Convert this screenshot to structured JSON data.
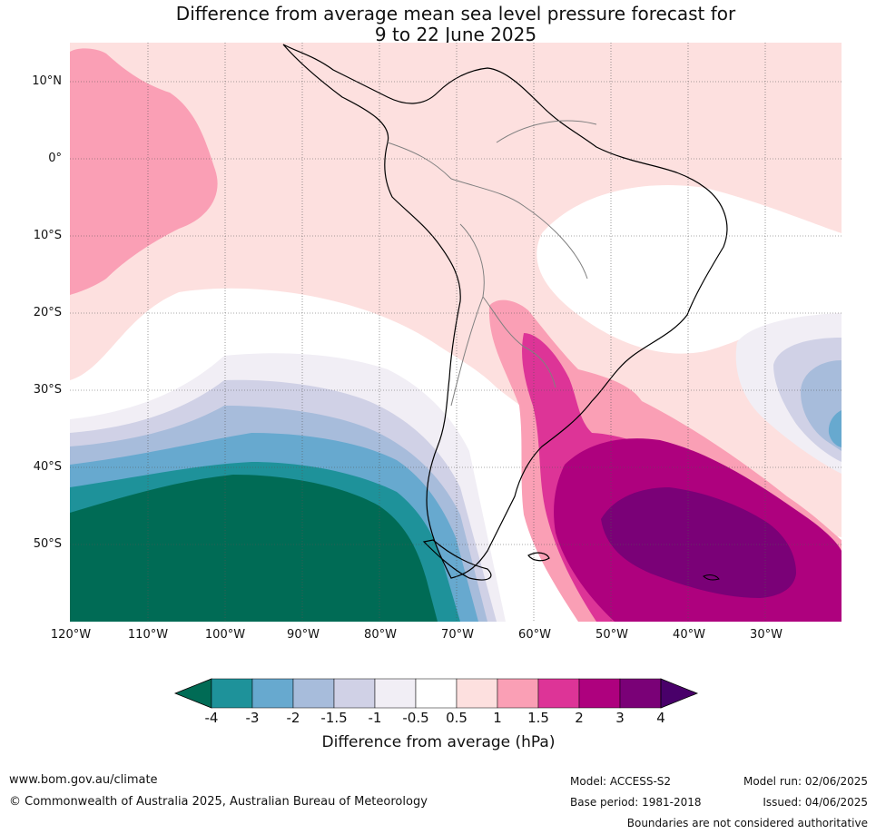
{
  "title": {
    "line1": "Difference from average mean sea level pressure forecast for",
    "line2": "9 to 22 June 2025"
  },
  "map": {
    "lat_labels": [
      "10°N",
      "0°",
      "10°S",
      "20°S",
      "30°S",
      "40°S",
      "50°S"
    ],
    "lon_labels": [
      "120°W",
      "110°W",
      "100°W",
      "90°W",
      "80°W",
      "70°W",
      "60°W",
      "50°W",
      "40°W",
      "30°W"
    ],
    "colors": {
      "lt_-4": "#006b55",
      "-4_-3": "#1e929a",
      "-3_-2": "#67a9cf",
      "-2_-1.5": "#a7bcdb",
      "-1.5_-1": "#d0d1e6",
      "-1_-0.5": "#f1eef5",
      "-0.5_0.5": "#ffffff",
      "0.5_1": "#fde0df",
      "1_1.5": "#fa9fb5",
      "1.5_2": "#dd3497",
      "2_3": "#ae017e",
      "3_4": "#7a0177",
      "gt_4": "#49006a"
    }
  },
  "colorbar": {
    "labels": [
      "-4",
      "-3",
      "-2",
      "-1.5",
      "-1",
      "-0.5",
      "0.5",
      "1",
      "1.5",
      "2",
      "3",
      "4"
    ],
    "title": "Difference from average (hPa)"
  },
  "footer": {
    "url": "www.bom.gov.au/climate",
    "copyright": "© Commonwealth of Australia 2025, Australian Bureau of Meteorology",
    "model": "Model: ACCESS-S2",
    "base_period": "Base period: 1981-2018",
    "model_run": "Model run: 02/06/2025",
    "issued": "Issued: 04/06/2025",
    "disclaimer": "Boundaries are not considered authoritative"
  }
}
